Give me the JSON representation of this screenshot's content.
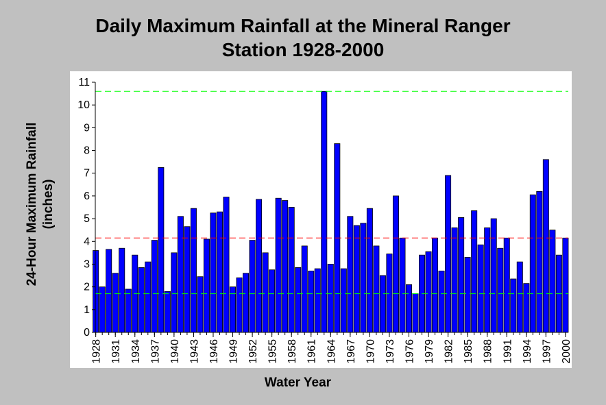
{
  "chart_data": {
    "type": "bar",
    "title_line1": "Daily Maximum Rainfall at the Mineral Ranger",
    "title_line2": "Station 1928-2000",
    "ylabel_line1": "24-Hour Maximum Rainfall",
    "ylabel_line2": "(inches)",
    "xlabel": "Water Year",
    "ylim": [
      0,
      11
    ],
    "yticks": [
      0,
      1,
      2,
      3,
      4,
      5,
      6,
      7,
      8,
      9,
      10,
      11
    ],
    "x_tick_labels": [
      "1928",
      "1931",
      "1934",
      "1937",
      "1940",
      "1943",
      "1946",
      "1949",
      "1952",
      "1955",
      "1958",
      "1961",
      "1964",
      "1967",
      "1970",
      "1973",
      "1976",
      "1979",
      "1982",
      "1985",
      "1988",
      "1991",
      "1994",
      "1997",
      "2000"
    ],
    "grid": false,
    "bar_color": "#0000ff",
    "years": [
      1928,
      1929,
      1930,
      1931,
      1932,
      1933,
      1934,
      1935,
      1936,
      1937,
      1938,
      1939,
      1940,
      1941,
      1942,
      1943,
      1944,
      1945,
      1946,
      1947,
      1948,
      1949,
      1950,
      1951,
      1952,
      1953,
      1954,
      1955,
      1956,
      1957,
      1958,
      1959,
      1960,
      1961,
      1962,
      1963,
      1964,
      1965,
      1966,
      1967,
      1968,
      1969,
      1970,
      1971,
      1972,
      1973,
      1974,
      1975,
      1976,
      1977,
      1978,
      1979,
      1980,
      1981,
      1982,
      1983,
      1984,
      1985,
      1986,
      1987,
      1988,
      1989,
      1990,
      1991,
      1992,
      1993,
      1994,
      1995,
      1996,
      1997,
      1998,
      1999,
      2000
    ],
    "values": [
      3.6,
      2.0,
      3.65,
      2.6,
      3.7,
      1.9,
      3.4,
      2.85,
      3.1,
      4.05,
      7.25,
      1.8,
      3.5,
      5.1,
      4.65,
      5.45,
      2.45,
      4.1,
      5.25,
      5.3,
      5.95,
      2.0,
      2.4,
      2.6,
      4.05,
      5.85,
      3.5,
      2.75,
      5.9,
      5.8,
      5.5,
      2.85,
      3.8,
      2.7,
      2.8,
      10.6,
      3.0,
      8.3,
      2.8,
      5.1,
      4.7,
      4.8,
      5.45,
      3.8,
      2.5,
      3.45,
      6.0,
      4.15,
      2.1,
      1.7,
      3.4,
      3.55,
      4.15,
      2.7,
      6.9,
      4.6,
      5.05,
      3.3,
      5.35,
      3.85,
      4.6,
      5.0,
      3.7,
      4.15,
      2.35,
      3.1,
      2.15,
      6.05,
      6.2,
      7.6,
      4.5,
      3.4,
      4.15
    ],
    "reference_lines": [
      {
        "value": 10.6,
        "color": "#00ff00"
      },
      {
        "value": 4.15,
        "color": "#ff0000"
      },
      {
        "value": 1.7,
        "color": "#00ff00"
      }
    ]
  }
}
